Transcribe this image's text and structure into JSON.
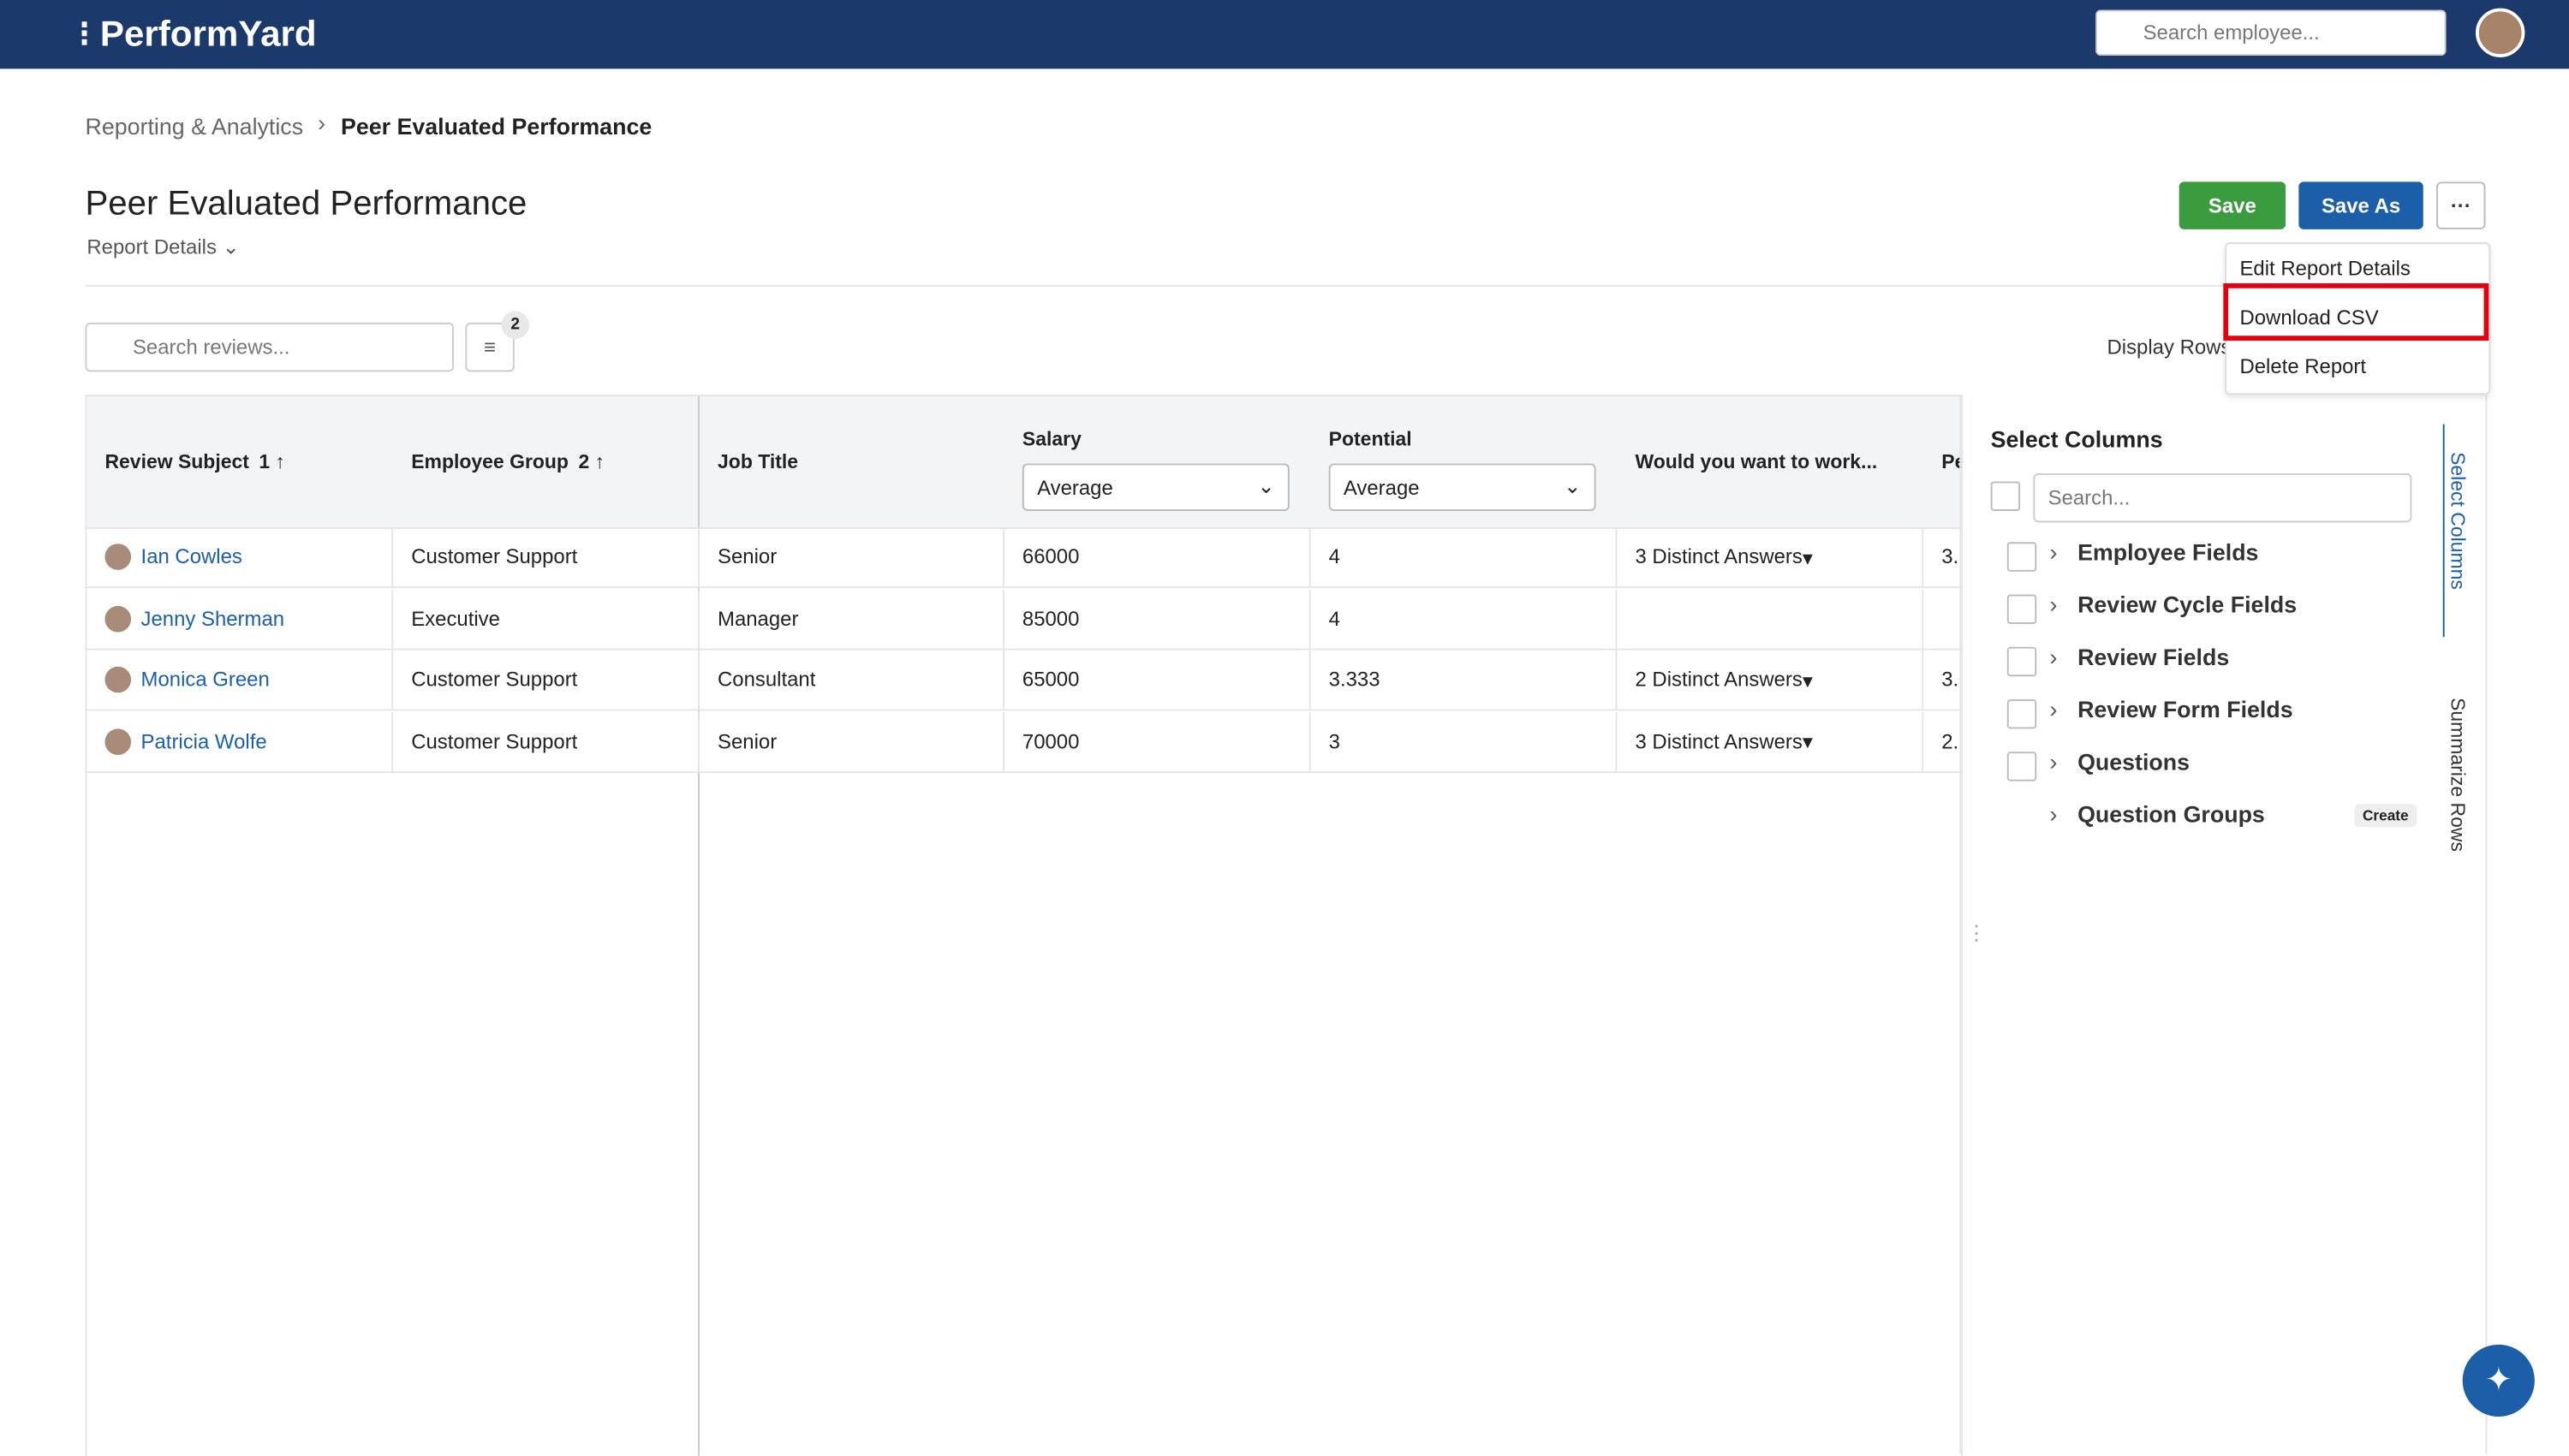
{
  "header": {
    "logo": "PerformYard",
    "search": "Search employee..."
  },
  "breadcrumb": {
    "parent": "Reporting & Analytics",
    "current": "Peer Evaluated Performance"
  },
  "page": {
    "title": "Peer Evaluated Performance",
    "details": "Report Details"
  },
  "buttons": {
    "save": "Save",
    "save_as": "Save As",
    "more": "···"
  },
  "menu": {
    "items": [
      "Edit Report Details",
      "Download CSV",
      "Delete Report"
    ]
  },
  "toolbar": {
    "search": "Search reviews...",
    "filter_count": "2",
    "display_rows": "Display Rows"
  },
  "table": {
    "columns": [
      {
        "label": "Review Subject",
        "sort": "1"
      },
      {
        "label": "Employee Group",
        "sort": "2"
      },
      {
        "label": "Job Title"
      },
      {
        "label": "Salary",
        "aggregate": "Average"
      },
      {
        "label": "Potential",
        "aggregate": "Average"
      },
      {
        "label": "Would you want to work..."
      },
      {
        "label": "Pe"
      }
    ],
    "rows": [
      [
        "Ian Cowles",
        "Customer Support",
        "Senior",
        "66000",
        "4",
        "3 Distinct Answers",
        "3."
      ],
      [
        "Jenny Sherman",
        "Executive",
        "Manager",
        "85000",
        "4",
        null,
        null
      ],
      [
        "Monica Green",
        "Customer Support",
        "Consultant",
        "65000",
        "3.333",
        "2 Distinct Answers",
        "3."
      ],
      [
        "Patricia Wolfe",
        "Customer Support",
        "Senior",
        "70000",
        "3",
        "3 Distinct Answers",
        "2."
      ]
    ]
  },
  "panel": {
    "title": "Select Columns",
    "search": "Search...",
    "groups": [
      "Employee Fields",
      "Review Cycle Fields",
      "Review Fields",
      "Review Form Fields",
      "Questions",
      "Question Groups"
    ],
    "create": "Create",
    "tabs": [
      "Select Columns",
      "Summarize Rows"
    ]
  }
}
